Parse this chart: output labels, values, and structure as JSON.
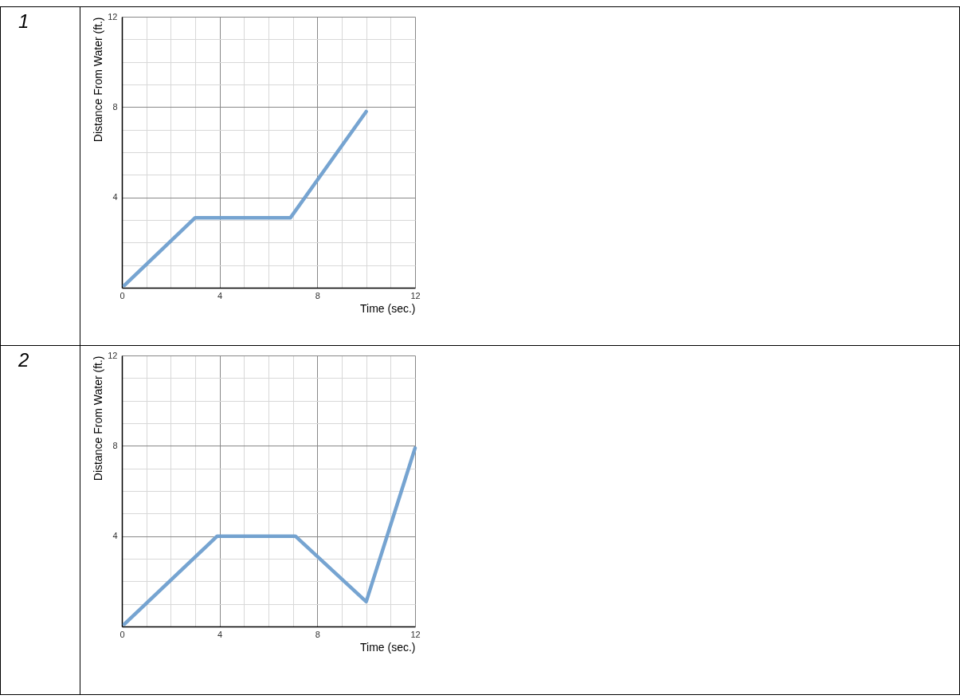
{
  "chart_data": [
    {
      "type": "line",
      "title": "1",
      "xlabel": "Time (sec.)",
      "ylabel": "Distance From Water (ft.)",
      "x": [
        0.1,
        3,
        6.9,
        10
      ],
      "values": [
        0.1,
        3.1,
        3.1,
        7.8
      ],
      "color": "#6f9fcf",
      "xlim": [
        0,
        12
      ],
      "ylim": [
        0,
        12
      ],
      "xticks": [
        0,
        {
          "value": 1,
          "label": null
        },
        {
          "value": 2,
          "label": null
        },
        {
          "value": 3,
          "label": null
        },
        4,
        {
          "value": 5,
          "label": null
        },
        {
          "value": 6,
          "label": null
        },
        {
          "value": 7,
          "label": null
        },
        8,
        {
          "value": 9,
          "label": null
        },
        {
          "value": 10,
          "label": null
        },
        {
          "value": 11,
          "label": null
        },
        12
      ],
      "yticks": [
        {
          "value": 0,
          "label": null
        },
        {
          "value": 1,
          "label": null
        },
        {
          "value": 2,
          "label": null
        },
        {
          "value": 3,
          "label": null
        },
        4,
        {
          "value": 5,
          "label": null
        },
        {
          "value": 6,
          "label": null
        },
        {
          "value": 7,
          "label": null
        },
        8,
        {
          "value": 9,
          "label": null
        },
        {
          "value": 10,
          "label": null
        },
        {
          "value": 11,
          "label": null
        },
        12
      ],
      "grid": true,
      "line_style": "solid"
    },
    {
      "type": "line",
      "title": "2",
      "xlabel": "Time (sec.)",
      "ylabel": "Distance From Water (ft.)",
      "x": [
        0.1,
        3.9,
        7.1,
        10,
        12
      ],
      "values": [
        0.1,
        4,
        4,
        1.1,
        7.9
      ],
      "color": "#6f9fcf",
      "xlim": [
        0,
        12
      ],
      "ylim": [
        0,
        12
      ],
      "xticks": [
        0,
        {
          "value": 1,
          "label": null
        },
        {
          "value": 2,
          "label": null
        },
        {
          "value": 3,
          "label": null
        },
        4,
        {
          "value": 5,
          "label": null
        },
        {
          "value": 6,
          "label": null
        },
        {
          "value": 7,
          "label": null
        },
        8,
        {
          "value": 9,
          "label": null
        },
        {
          "value": 10,
          "label": null
        },
        {
          "value": 11,
          "label": null
        },
        12
      ],
      "yticks": [
        {
          "value": 0,
          "label": null
        },
        {
          "value": 1,
          "label": null
        },
        {
          "value": 2,
          "label": null
        },
        {
          "value": 3,
          "label": null
        },
        4,
        {
          "value": 5,
          "label": null
        },
        {
          "value": 6,
          "label": null
        },
        {
          "value": 7,
          "label": null
        },
        8,
        {
          "value": 9,
          "label": null
        },
        {
          "value": 10,
          "label": null
        },
        {
          "value": 11,
          "label": null
        },
        12
      ],
      "grid": true,
      "line_style": "solid"
    }
  ]
}
